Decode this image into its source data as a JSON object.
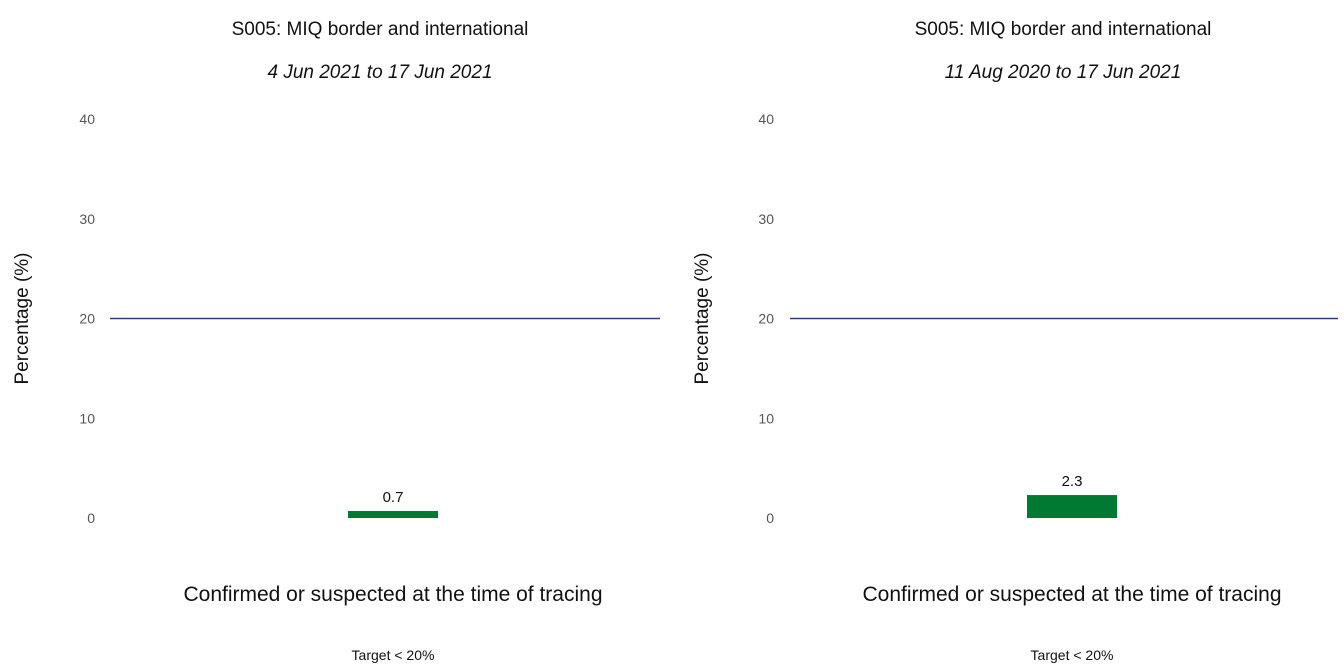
{
  "chart_data": [
    {
      "type": "bar",
      "title": "S005: MIQ border and international",
      "subtitle": "4 Jun 2021 to 17 Jun 2021",
      "ylabel": "Percentage (%)",
      "xlabel": "Target < 20%",
      "categories": [
        "Confirmed or suspected at the time of tracing"
      ],
      "values": [
        0.7
      ],
      "data_labels": [
        "0.7"
      ],
      "ylim": [
        0,
        40
      ],
      "yticks": [
        "0",
        "10",
        "20",
        "30",
        "40"
      ],
      "target": 20,
      "bar_color": "#007a33",
      "target_color": "#2f3f7a",
      "grid": false,
      "legend": "none"
    },
    {
      "type": "bar",
      "title": "S005: MIQ border and international",
      "subtitle": "11 Aug 2020 to 17 Jun 2021",
      "ylabel": "Percentage (%)",
      "xlabel": "Target < 20%",
      "categories": [
        "Confirmed or suspected at the time of tracing"
      ],
      "values": [
        2.3
      ],
      "data_labels": [
        "2.3"
      ],
      "ylim": [
        0,
        40
      ],
      "yticks": [
        "0",
        "10",
        "20",
        "30",
        "40"
      ],
      "target": 20,
      "bar_color": "#007a33",
      "target_color": "#2f3f7a",
      "grid": false,
      "legend": "none"
    }
  ]
}
